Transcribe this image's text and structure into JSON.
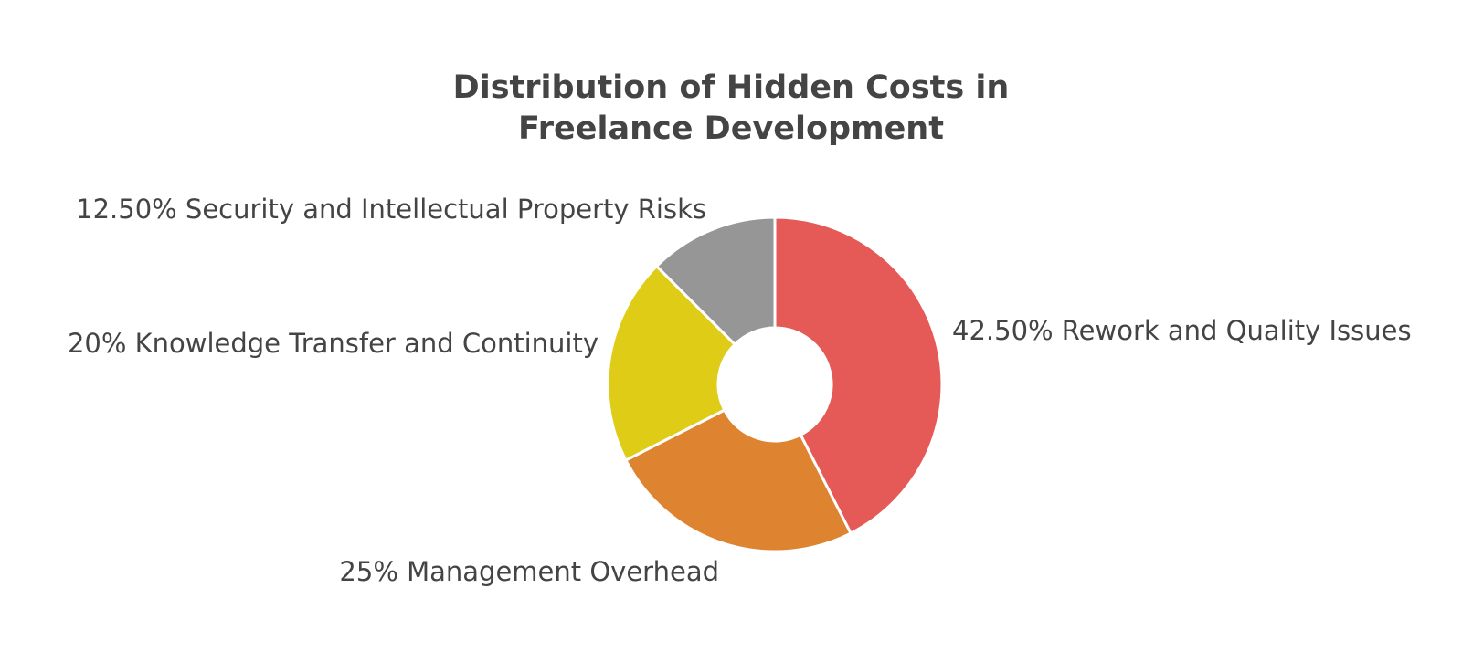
{
  "chart_data": {
    "type": "pie",
    "variant": "donut",
    "title": "Distribution of Hidden Costs in Freelance Development",
    "slices": [
      {
        "label": "Rework and Quality Issues",
        "value": 42.5,
        "value_label": "42.50%",
        "color": "#e55957"
      },
      {
        "label": "Management Overhead",
        "value": 25,
        "value_label": "25%",
        "color": "#de8431"
      },
      {
        "label": "Knowledge Transfer and Continuity",
        "value": 20,
        "value_label": "20%",
        "color": "#decc17"
      },
      {
        "label": "Security and Intellectual Property Risks",
        "value": 12.5,
        "value_label": "12.50%",
        "color": "#969696"
      }
    ]
  }
}
